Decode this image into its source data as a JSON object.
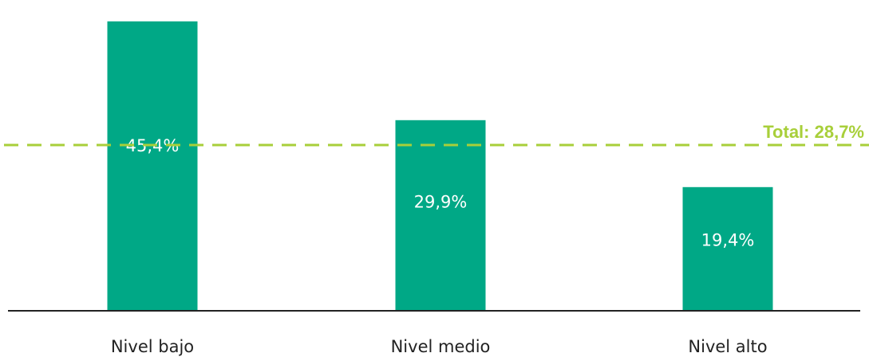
{
  "chart_data": {
    "type": "bar",
    "categories": [
      "Nivel bajo",
      "Nivel medio",
      "Nivel alto"
    ],
    "values": [
      45.4,
      29.9,
      19.4
    ],
    "value_labels": [
      "45,4%",
      "29,9%",
      "19,4%"
    ],
    "title": "",
    "xlabel": "",
    "ylabel": "",
    "ylim": [
      0,
      47
    ],
    "grid": false,
    "reference_line": {
      "value": 28.7,
      "label": "Total: 28,7%",
      "style": "dashed"
    },
    "colors": {
      "bar": "#00A886",
      "reference": "#A8CF3A",
      "axis": "#222222"
    }
  }
}
